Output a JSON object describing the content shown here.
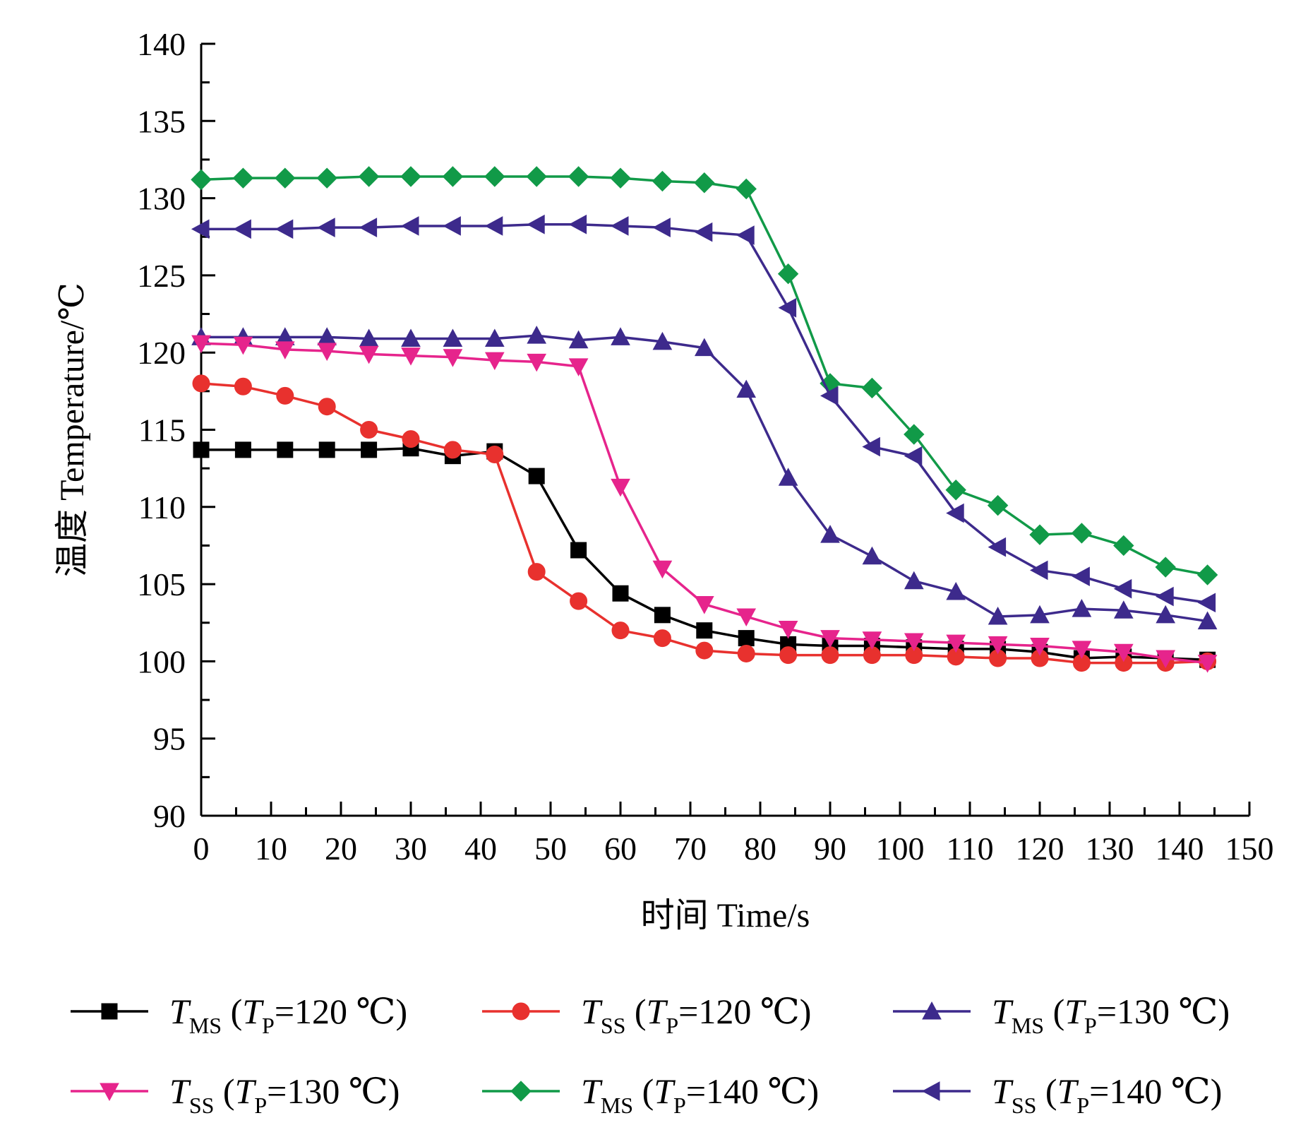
{
  "chart_data": {
    "type": "line",
    "xlabel": "时间 Time/s",
    "ylabel": "温度 Temperature/℃",
    "xlim": [
      0,
      150
    ],
    "ylim": [
      90,
      140
    ],
    "xticks": [
      0,
      10,
      20,
      30,
      40,
      50,
      60,
      70,
      80,
      90,
      100,
      110,
      120,
      130,
      140,
      150
    ],
    "yticks": [
      90,
      95,
      100,
      105,
      110,
      115,
      120,
      125,
      130,
      135,
      140
    ],
    "grid": false,
    "legend_position": "bottom",
    "x": [
      0,
      6,
      12,
      18,
      24,
      30,
      36,
      42,
      48,
      54,
      60,
      66,
      72,
      78,
      84,
      90,
      96,
      102,
      108,
      114,
      120,
      126,
      132,
      138,
      144
    ],
    "series": [
      {
        "name": "T_MS (T_P=120 ℃)",
        "legend_main": "T",
        "legend_sub": "MS",
        "legend_open": " (",
        "legend_tp": "T",
        "legend_tp_sub": "P",
        "legend_rest": "=120 ℃)",
        "color": "#000000",
        "marker": "square",
        "values": [
          113.7,
          113.7,
          113.7,
          113.7,
          113.7,
          113.8,
          113.3,
          113.6,
          112.0,
          107.2,
          104.4,
          103.0,
          102.0,
          101.5,
          101.1,
          101.0,
          101.0,
          100.9,
          100.8,
          100.8,
          100.6,
          100.2,
          100.3,
          100.2,
          100.1
        ]
      },
      {
        "name": "T_SS (T_P=120 ℃)",
        "legend_main": "T",
        "legend_sub": "SS",
        "legend_open": " (",
        "legend_tp": "T",
        "legend_tp_sub": "P",
        "legend_rest": "=120 ℃)",
        "color": "#e8312e",
        "marker": "circle",
        "values": [
          118.0,
          117.8,
          117.2,
          116.5,
          115.0,
          114.4,
          113.7,
          113.4,
          105.8,
          103.9,
          102.0,
          101.5,
          100.7,
          100.5,
          100.4,
          100.4,
          100.4,
          100.4,
          100.3,
          100.2,
          100.2,
          99.9,
          99.9,
          99.9,
          100.0
        ]
      },
      {
        "name": "T_MS (T_P=130 ℃)",
        "legend_main": "T",
        "legend_sub": "MS",
        "legend_open": " (",
        "legend_tp": "T",
        "legend_tp_sub": "P",
        "legend_rest": "=130 ℃)",
        "color": "#3d2a8c",
        "marker": "triangle-up",
        "values": [
          121.0,
          121.0,
          121.0,
          121.0,
          120.9,
          120.9,
          120.9,
          120.9,
          121.1,
          120.8,
          121.0,
          120.7,
          120.3,
          117.6,
          111.9,
          108.2,
          106.8,
          105.2,
          104.5,
          102.9,
          103.0,
          103.4,
          103.3,
          103.0,
          102.6
        ]
      },
      {
        "name": "T_SS (T_P=130 ℃)",
        "legend_main": "T",
        "legend_sub": "SS",
        "legend_open": " (",
        "legend_tp": "T",
        "legend_tp_sub": "P",
        "legend_rest": "=130 ℃)",
        "color": "#e6248c",
        "marker": "triangle-down",
        "values": [
          120.6,
          120.5,
          120.2,
          120.1,
          119.9,
          119.8,
          119.7,
          119.5,
          119.4,
          119.1,
          111.3,
          106.0,
          103.7,
          102.9,
          102.1,
          101.5,
          101.4,
          101.3,
          101.2,
          101.1,
          101.0,
          100.8,
          100.6,
          100.2,
          99.9
        ]
      },
      {
        "name": "T_MS (T_P=140 ℃)",
        "legend_main": "T",
        "legend_sub": "MS",
        "legend_open": " (",
        "legend_tp": "T",
        "legend_tp_sub": "P",
        "legend_rest": "=140 ℃)",
        "color": "#119a48",
        "marker": "diamond",
        "values": [
          131.2,
          131.3,
          131.3,
          131.3,
          131.4,
          131.4,
          131.4,
          131.4,
          131.4,
          131.4,
          131.3,
          131.1,
          131.0,
          130.6,
          125.1,
          118.0,
          117.7,
          114.7,
          111.1,
          110.1,
          108.2,
          108.3,
          107.5,
          106.1,
          105.6
        ]
      },
      {
        "name": "T_SS (T_P=140 ℃)",
        "legend_main": "T",
        "legend_sub": "SS",
        "legend_open": " (",
        "legend_tp": "T",
        "legend_tp_sub": "P",
        "legend_rest": "=140 ℃)",
        "color": "#3d2a8c",
        "marker": "triangle-left",
        "values": [
          128.0,
          128.0,
          128.0,
          128.1,
          128.1,
          128.2,
          128.2,
          128.2,
          128.3,
          128.3,
          128.2,
          128.1,
          127.8,
          127.6,
          122.9,
          117.2,
          113.9,
          113.3,
          109.6,
          107.4,
          105.9,
          105.5,
          104.7,
          104.2,
          103.8
        ]
      }
    ]
  }
}
